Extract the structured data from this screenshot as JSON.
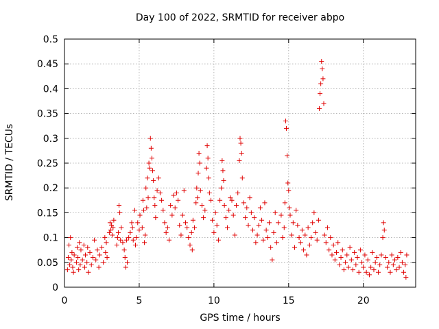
{
  "chart_data": {
    "type": "scatter",
    "title": "Day 100 of 2022, SRMTID for receiver abpo",
    "xlabel": "GPS time / hours",
    "ylabel": "SRMTID / TECUs",
    "xlim": [
      0,
      23.5
    ],
    "ylim": [
      0,
      0.5
    ],
    "xticks": [
      0,
      5,
      10,
      15,
      20
    ],
    "xtick_labels": [
      "0",
      "5",
      "10",
      "15",
      "20"
    ],
    "yticks": [
      0,
      0.05,
      0.1,
      0.15,
      0.2,
      0.25,
      0.3,
      0.35,
      0.4,
      0.45,
      0.5
    ],
    "ytick_labels": [
      "0",
      "0.05",
      "0.1",
      "0.15",
      "0.2",
      "0.25",
      "0.3",
      "0.35",
      "0.4",
      "0.45",
      "0.5"
    ],
    "grid": true,
    "marker": "+",
    "color": "#e00000",
    "series": [
      {
        "name": "SRMTID",
        "points": [
          [
            0.2,
            0.035
          ],
          [
            0.25,
            0.06
          ],
          [
            0.3,
            0.085
          ],
          [
            0.35,
            0.045
          ],
          [
            0.4,
            0.1
          ],
          [
            0.45,
            0.055
          ],
          [
            0.5,
            0.07
          ],
          [
            0.55,
            0.04
          ],
          [
            0.6,
            0.03
          ],
          [
            0.65,
            0.065
          ],
          [
            0.8,
            0.05
          ],
          [
            0.85,
            0.08
          ],
          [
            0.9,
            0.06
          ],
          [
            0.95,
            0.035
          ],
          [
            1.0,
            0.09
          ],
          [
            1.05,
            0.045
          ],
          [
            1.1,
            0.075
          ],
          [
            1.2,
            0.055
          ],
          [
            1.3,
            0.085
          ],
          [
            1.35,
            0.04
          ],
          [
            1.4,
            0.065
          ],
          [
            1.5,
            0.05
          ],
          [
            1.55,
            0.08
          ],
          [
            1.6,
            0.03
          ],
          [
            1.7,
            0.07
          ],
          [
            1.8,
            0.045
          ],
          [
            1.9,
            0.06
          ],
          [
            2.0,
            0.095
          ],
          [
            2.1,
            0.055
          ],
          [
            2.2,
            0.075
          ],
          [
            2.3,
            0.04
          ],
          [
            2.35,
            0.065
          ],
          [
            2.5,
            0.08
          ],
          [
            2.6,
            0.05
          ],
          [
            2.7,
            0.1
          ],
          [
            2.75,
            0.07
          ],
          [
            2.8,
            0.09
          ],
          [
            2.85,
            0.06
          ],
          [
            3.0,
            0.11
          ],
          [
            3.05,
            0.13
          ],
          [
            3.1,
            0.115
          ],
          [
            3.15,
            0.125
          ],
          [
            3.2,
            0.105
          ],
          [
            3.25,
            0.12
          ],
          [
            3.3,
            0.135
          ],
          [
            3.5,
            0.085
          ],
          [
            3.55,
            0.1
          ],
          [
            3.6,
            0.11
          ],
          [
            3.65,
            0.165
          ],
          [
            3.7,
            0.15
          ],
          [
            3.75,
            0.095
          ],
          [
            3.8,
            0.12
          ],
          [
            3.9,
            0.09
          ],
          [
            4.0,
            0.075
          ],
          [
            4.05,
            0.06
          ],
          [
            4.1,
            0.04
          ],
          [
            4.15,
            0.095
          ],
          [
            4.2,
            0.05
          ],
          [
            4.3,
            0.1
          ],
          [
            4.4,
            0.11
          ],
          [
            4.5,
            0.13
          ],
          [
            4.55,
            0.12
          ],
          [
            4.6,
            0.095
          ],
          [
            4.7,
            0.155
          ],
          [
            4.75,
            0.085
          ],
          [
            4.8,
            0.1
          ],
          [
            4.9,
            0.13
          ],
          [
            5.0,
            0.115
          ],
          [
            5.05,
            0.145
          ],
          [
            5.2,
            0.12
          ],
          [
            5.25,
            0.175
          ],
          [
            5.3,
            0.155
          ],
          [
            5.35,
            0.09
          ],
          [
            5.4,
            0.105
          ],
          [
            5.45,
            0.2
          ],
          [
            5.5,
            0.16
          ],
          [
            5.55,
            0.22
          ],
          [
            5.6,
            0.18
          ],
          [
            5.65,
            0.25
          ],
          [
            5.7,
            0.24
          ],
          [
            5.75,
            0.3
          ],
          [
            5.8,
            0.28
          ],
          [
            5.85,
            0.26
          ],
          [
            5.9,
            0.235
          ],
          [
            5.95,
            0.215
          ],
          [
            6.0,
            0.18
          ],
          [
            6.05,
            0.165
          ],
          [
            6.1,
            0.14
          ],
          [
            6.2,
            0.195
          ],
          [
            6.3,
            0.22
          ],
          [
            6.4,
            0.19
          ],
          [
            6.5,
            0.175
          ],
          [
            6.6,
            0.155
          ],
          [
            6.7,
            0.13
          ],
          [
            6.8,
            0.11
          ],
          [
            6.9,
            0.12
          ],
          [
            7.0,
            0.095
          ],
          [
            7.1,
            0.165
          ],
          [
            7.2,
            0.145
          ],
          [
            7.3,
            0.185
          ],
          [
            7.4,
            0.16
          ],
          [
            7.5,
            0.19
          ],
          [
            7.6,
            0.175
          ],
          [
            7.7,
            0.125
          ],
          [
            7.8,
            0.105
          ],
          [
            7.9,
            0.145
          ],
          [
            8.0,
            0.195
          ],
          [
            8.1,
            0.13
          ],
          [
            8.2,
            0.12
          ],
          [
            8.3,
            0.1
          ],
          [
            8.4,
            0.085
          ],
          [
            8.5,
            0.11
          ],
          [
            8.55,
            0.075
          ],
          [
            8.6,
            0.135
          ],
          [
            8.7,
            0.12
          ],
          [
            8.8,
            0.17
          ],
          [
            8.85,
            0.2
          ],
          [
            8.9,
            0.18
          ],
          [
            8.95,
            0.23
          ],
          [
            9.0,
            0.27
          ],
          [
            9.05,
            0.25
          ],
          [
            9.1,
            0.195
          ],
          [
            9.2,
            0.165
          ],
          [
            9.3,
            0.14
          ],
          [
            9.4,
            0.155
          ],
          [
            9.5,
            0.24
          ],
          [
            9.55,
            0.285
          ],
          [
            9.6,
            0.26
          ],
          [
            9.65,
            0.22
          ],
          [
            9.7,
            0.19
          ],
          [
            9.8,
            0.175
          ],
          [
            9.9,
            0.135
          ],
          [
            10.0,
            0.11
          ],
          [
            10.1,
            0.15
          ],
          [
            10.2,
            0.125
          ],
          [
            10.3,
            0.095
          ],
          [
            10.4,
            0.175
          ],
          [
            10.5,
            0.2
          ],
          [
            10.55,
            0.255
          ],
          [
            10.6,
            0.235
          ],
          [
            10.65,
            0.215
          ],
          [
            10.7,
            0.165
          ],
          [
            10.8,
            0.14
          ],
          [
            10.9,
            0.12
          ],
          [
            11.0,
            0.155
          ],
          [
            11.1,
            0.18
          ],
          [
            11.2,
            0.175
          ],
          [
            11.3,
            0.145
          ],
          [
            11.4,
            0.105
          ],
          [
            11.5,
            0.165
          ],
          [
            11.6,
            0.19
          ],
          [
            11.7,
            0.255
          ],
          [
            11.75,
            0.3
          ],
          [
            11.8,
            0.29
          ],
          [
            11.85,
            0.27
          ],
          [
            11.9,
            0.22
          ],
          [
            12.0,
            0.17
          ],
          [
            12.1,
            0.14
          ],
          [
            12.2,
            0.16
          ],
          [
            12.3,
            0.125
          ],
          [
            12.4,
            0.18
          ],
          [
            12.5,
            0.15
          ],
          [
            12.6,
            0.115
          ],
          [
            12.7,
            0.14
          ],
          [
            12.8,
            0.09
          ],
          [
            12.9,
            0.105
          ],
          [
            13.0,
            0.125
          ],
          [
            13.1,
            0.16
          ],
          [
            13.2,
            0.135
          ],
          [
            13.3,
            0.095
          ],
          [
            13.4,
            0.17
          ],
          [
            13.5,
            0.115
          ],
          [
            13.6,
            0.1
          ],
          [
            13.7,
            0.13
          ],
          [
            13.8,
            0.08
          ],
          [
            13.9,
            0.055
          ],
          [
            14.0,
            0.11
          ],
          [
            14.1,
            0.15
          ],
          [
            14.2,
            0.09
          ],
          [
            14.3,
            0.13
          ],
          [
            14.5,
            0.145
          ],
          [
            14.6,
            0.1
          ],
          [
            14.7,
            0.12
          ],
          [
            14.75,
            0.17
          ],
          [
            14.8,
            0.335
          ],
          [
            14.85,
            0.32
          ],
          [
            14.9,
            0.265
          ],
          [
            14.95,
            0.21
          ],
          [
            15.0,
            0.195
          ],
          [
            15.05,
            0.16
          ],
          [
            15.1,
            0.145
          ],
          [
            15.2,
            0.105
          ],
          [
            15.3,
            0.13
          ],
          [
            15.4,
            0.08
          ],
          [
            15.5,
            0.155
          ],
          [
            15.6,
            0.125
          ],
          [
            15.7,
            0.1
          ],
          [
            15.8,
            0.09
          ],
          [
            15.9,
            0.115
          ],
          [
            16.0,
            0.075
          ],
          [
            16.1,
            0.105
          ],
          [
            16.2,
            0.065
          ],
          [
            16.3,
            0.12
          ],
          [
            16.4,
            0.085
          ],
          [
            16.5,
            0.1
          ],
          [
            16.6,
            0.13
          ],
          [
            16.7,
            0.15
          ],
          [
            16.8,
            0.11
          ],
          [
            16.9,
            0.095
          ],
          [
            17.0,
            0.135
          ],
          [
            17.05,
            0.36
          ],
          [
            17.1,
            0.39
          ],
          [
            17.15,
            0.41
          ],
          [
            17.2,
            0.455
          ],
          [
            17.25,
            0.44
          ],
          [
            17.3,
            0.42
          ],
          [
            17.35,
            0.37
          ],
          [
            17.4,
            0.105
          ],
          [
            17.5,
            0.09
          ],
          [
            17.6,
            0.12
          ],
          [
            17.7,
            0.075
          ],
          [
            17.8,
            0.1
          ],
          [
            17.9,
            0.065
          ],
          [
            18.0,
            0.085
          ],
          [
            18.1,
            0.055
          ],
          [
            18.2,
            0.07
          ],
          [
            18.3,
            0.09
          ],
          [
            18.4,
            0.045
          ],
          [
            18.5,
            0.06
          ],
          [
            18.6,
            0.075
          ],
          [
            18.7,
            0.035
          ],
          [
            18.8,
            0.05
          ],
          [
            18.9,
            0.065
          ],
          [
            19.0,
            0.04
          ],
          [
            19.1,
            0.08
          ],
          [
            19.2,
            0.055
          ],
          [
            19.3,
            0.035
          ],
          [
            19.4,
            0.07
          ],
          [
            19.5,
            0.045
          ],
          [
            19.6,
            0.06
          ],
          [
            19.7,
            0.03
          ],
          [
            19.8,
            0.075
          ],
          [
            19.9,
            0.05
          ],
          [
            20.0,
            0.04
          ],
          [
            20.1,
            0.065
          ],
          [
            20.2,
            0.03
          ],
          [
            20.3,
            0.055
          ],
          [
            20.4,
            0.025
          ],
          [
            20.5,
            0.04
          ],
          [
            20.6,
            0.07
          ],
          [
            20.7,
            0.035
          ],
          [
            20.8,
            0.05
          ],
          [
            20.9,
            0.06
          ],
          [
            21.0,
            0.03
          ],
          [
            21.1,
            0.045
          ],
          [
            21.2,
            0.065
          ],
          [
            21.3,
            0.1
          ],
          [
            21.35,
            0.13
          ],
          [
            21.4,
            0.115
          ],
          [
            21.5,
            0.06
          ],
          [
            21.6,
            0.04
          ],
          [
            21.7,
            0.05
          ],
          [
            21.8,
            0.03
          ],
          [
            21.9,
            0.065
          ],
          [
            22.0,
            0.045
          ],
          [
            22.1,
            0.055
          ],
          [
            22.2,
            0.035
          ],
          [
            22.3,
            0.06
          ],
          [
            22.4,
            0.04
          ],
          [
            22.5,
            0.07
          ],
          [
            22.6,
            0.05
          ],
          [
            22.7,
            0.03
          ],
          [
            22.8,
            0.045
          ],
          [
            22.85,
            0.02
          ],
          [
            22.9,
            0.065
          ]
        ]
      }
    ]
  }
}
